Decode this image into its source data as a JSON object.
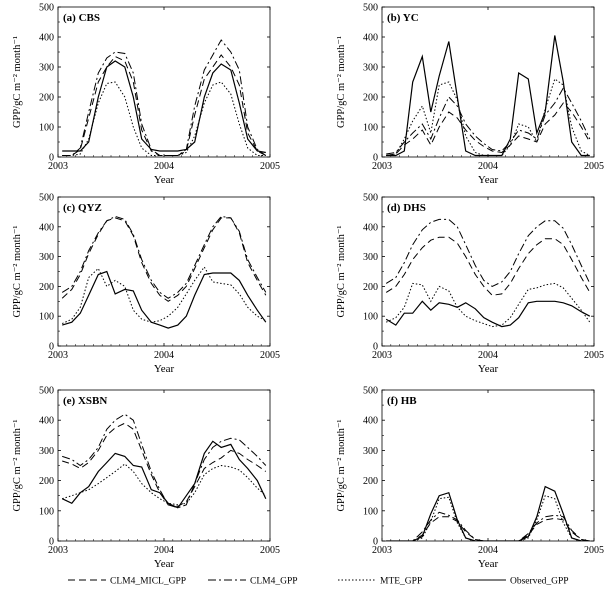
{
  "figure": {
    "legend": [
      {
        "label": "CLM4_MICL_GPP",
        "dash": "dash"
      },
      {
        "label": "CLM4_GPP",
        "dash": "dashdot"
      },
      {
        "label": "MTE_GPP",
        "dash": "dot"
      },
      {
        "label": "Observed_GPP",
        "dash": "solid"
      }
    ],
    "line_color": "#000000"
  },
  "chart_data": [
    {
      "type": "line",
      "panel_title": "(a) CBS",
      "xlabel": "Year",
      "ylabel": "GPP/gC m⁻² month⁻¹",
      "x_tick_labels": [
        "2003",
        "2004",
        "2005"
      ],
      "y_ticks": [
        0,
        100,
        200,
        300,
        400,
        500
      ],
      "xlim": [
        2003,
        2005
      ],
      "ylim": [
        0,
        500
      ],
      "grid": false,
      "x": [
        2003.04,
        2003.13,
        2003.21,
        2003.29,
        2003.38,
        2003.46,
        2003.54,
        2003.63,
        2003.71,
        2003.79,
        2003.88,
        2003.96,
        2004.04,
        2004.13,
        2004.21,
        2004.29,
        2004.38,
        2004.46,
        2004.54,
        2004.63,
        2004.71,
        2004.79,
        2004.88,
        2004.96
      ],
      "series": [
        {
          "name": "CLM4_MICL_GPP",
          "values": [
            5,
            5,
            25,
            130,
            250,
            300,
            335,
            320,
            250,
            90,
            20,
            5,
            5,
            5,
            20,
            140,
            260,
            300,
            340,
            300,
            240,
            80,
            20,
            5
          ]
        },
        {
          "name": "CLM4_GPP",
          "values": [
            5,
            5,
            30,
            150,
            280,
            330,
            350,
            345,
            280,
            110,
            25,
            5,
            5,
            5,
            25,
            170,
            290,
            340,
            390,
            350,
            290,
            100,
            25,
            5
          ]
        },
        {
          "name": "MTE_GPP",
          "values": [
            5,
            5,
            10,
            60,
            180,
            245,
            250,
            200,
            100,
            30,
            5,
            5,
            5,
            5,
            15,
            70,
            180,
            240,
            250,
            210,
            110,
            30,
            5,
            5
          ]
        },
        {
          "name": "Observed_GPP",
          "values": [
            20,
            20,
            20,
            50,
            200,
            300,
            320,
            300,
            200,
            60,
            25,
            20,
            20,
            20,
            25,
            50,
            200,
            280,
            310,
            290,
            180,
            60,
            20,
            15
          ]
        }
      ]
    },
    {
      "type": "line",
      "panel_title": "(b) YC",
      "xlabel": "Year",
      "ylabel": "GPP/gC m⁻² month⁻¹",
      "x_tick_labels": [
        "2003",
        "2004",
        "2005"
      ],
      "y_ticks": [
        0,
        100,
        200,
        300,
        400,
        500
      ],
      "xlim": [
        2003,
        2005
      ],
      "ylim": [
        0,
        500
      ],
      "grid": false,
      "x": [
        2003.04,
        2003.13,
        2003.21,
        2003.29,
        2003.38,
        2003.46,
        2003.54,
        2003.63,
        2003.71,
        2003.79,
        2003.88,
        2003.96,
        2004.04,
        2004.13,
        2004.21,
        2004.29,
        2004.38,
        2004.46,
        2004.54,
        2004.63,
        2004.71,
        2004.79,
        2004.88,
        2004.96
      ],
      "series": [
        {
          "name": "CLM4_MICL_GPP",
          "values": [
            5,
            10,
            40,
            60,
            90,
            40,
            100,
            150,
            130,
            90,
            55,
            35,
            20,
            15,
            40,
            70,
            60,
            50,
            110,
            140,
            180,
            150,
            100,
            50
          ]
        },
        {
          "name": "CLM4_GPP",
          "values": [
            10,
            15,
            50,
            80,
            110,
            60,
            130,
            200,
            170,
            110,
            70,
            45,
            25,
            20,
            50,
            90,
            80,
            60,
            140,
            180,
            230,
            180,
            120,
            60
          ]
        },
        {
          "name": "MTE_GPP",
          "values": [
            5,
            10,
            60,
            120,
            170,
            80,
            240,
            250,
            190,
            70,
            15,
            5,
            5,
            5,
            40,
            110,
            100,
            50,
            160,
            260,
            240,
            100,
            20,
            5
          ]
        },
        {
          "name": "Observed_GPP",
          "values": [
            5,
            5,
            20,
            250,
            335,
            150,
            270,
            385,
            200,
            20,
            5,
            5,
            5,
            5,
            60,
            280,
            260,
            80,
            150,
            405,
            250,
            50,
            5,
            5
          ]
        }
      ]
    },
    {
      "type": "line",
      "panel_title": "(c) QYZ",
      "xlabel": "Year",
      "ylabel": "GPP/gC m⁻² month⁻¹",
      "x_tick_labels": [
        "2003",
        "2004",
        "2005"
      ],
      "y_ticks": [
        0,
        100,
        200,
        300,
        400,
        500
      ],
      "xlim": [
        2003,
        2005
      ],
      "ylim": [
        0,
        500
      ],
      "grid": false,
      "x": [
        2003.04,
        2003.13,
        2003.21,
        2003.29,
        2003.38,
        2003.46,
        2003.54,
        2003.63,
        2003.71,
        2003.79,
        2003.88,
        2003.96,
        2004.04,
        2004.13,
        2004.21,
        2004.29,
        2004.38,
        2004.46,
        2004.54,
        2004.63,
        2004.71,
        2004.79,
        2004.88,
        2004.96
      ],
      "series": [
        {
          "name": "CLM4_MICL_GPP",
          "values": [
            160,
            190,
            240,
            310,
            375,
            420,
            430,
            420,
            370,
            280,
            210,
            170,
            150,
            170,
            200,
            260,
            330,
            390,
            430,
            430,
            380,
            280,
            220,
            170
          ]
        },
        {
          "name": "CLM4_GPP",
          "values": [
            180,
            200,
            250,
            320,
            380,
            420,
            435,
            425,
            375,
            290,
            220,
            180,
            160,
            180,
            210,
            270,
            340,
            400,
            435,
            430,
            385,
            290,
            230,
            180
          ]
        },
        {
          "name": "MTE_GPP",
          "values": [
            75,
            90,
            130,
            230,
            260,
            200,
            220,
            200,
            120,
            90,
            80,
            85,
            100,
            130,
            175,
            220,
            265,
            215,
            210,
            205,
            175,
            130,
            100,
            85
          ]
        },
        {
          "name": "Observed_GPP",
          "values": [
            70,
            80,
            110,
            170,
            240,
            250,
            175,
            190,
            185,
            120,
            80,
            70,
            60,
            70,
            100,
            170,
            240,
            245,
            245,
            245,
            220,
            170,
            120,
            80
          ]
        }
      ]
    },
    {
      "type": "line",
      "panel_title": "(d) DHS",
      "xlabel": "Year",
      "ylabel": "GPP/gC m⁻² month⁻¹",
      "x_tick_labels": [
        "2003",
        "2004",
        "2005"
      ],
      "y_ticks": [
        0,
        100,
        200,
        300,
        400,
        500
      ],
      "xlim": [
        2003,
        2005
      ],
      "ylim": [
        0,
        500
      ],
      "grid": false,
      "x": [
        2003.04,
        2003.13,
        2003.21,
        2003.29,
        2003.38,
        2003.46,
        2003.54,
        2003.63,
        2003.71,
        2003.79,
        2003.88,
        2003.96,
        2004.04,
        2004.13,
        2004.21,
        2004.29,
        2004.38,
        2004.46,
        2004.54,
        2004.63,
        2004.71,
        2004.79,
        2004.88,
        2004.96
      ],
      "series": [
        {
          "name": "CLM4_MICL_GPP",
          "values": [
            180,
            200,
            240,
            290,
            330,
            355,
            365,
            365,
            345,
            300,
            240,
            200,
            170,
            175,
            210,
            260,
            310,
            340,
            360,
            360,
            340,
            290,
            230,
            180
          ]
        },
        {
          "name": "CLM4_GPP",
          "values": [
            210,
            230,
            280,
            340,
            390,
            415,
            425,
            425,
            400,
            340,
            270,
            220,
            200,
            215,
            250,
            310,
            370,
            400,
            420,
            420,
            395,
            340,
            270,
            210
          ]
        },
        {
          "name": "MTE_GPP",
          "values": [
            80,
            95,
            130,
            210,
            205,
            150,
            200,
            185,
            130,
            100,
            85,
            75,
            65,
            70,
            95,
            140,
            190,
            195,
            205,
            210,
            195,
            160,
            120,
            80
          ]
        },
        {
          "name": "Observed_GPP",
          "values": [
            90,
            70,
            110,
            110,
            150,
            120,
            145,
            140,
            130,
            145,
            125,
            95,
            80,
            65,
            70,
            95,
            145,
            150,
            150,
            150,
            145,
            135,
            115,
            100
          ]
        }
      ]
    },
    {
      "type": "line",
      "panel_title": "(e) XSBN",
      "xlabel": "Year",
      "ylabel": "GPP/gC m⁻² month⁻¹",
      "x_tick_labels": [
        "2003",
        "2004",
        "2005"
      ],
      "y_ticks": [
        0,
        100,
        200,
        300,
        400,
        500
      ],
      "xlim": [
        2003,
        2005
      ],
      "ylim": [
        0,
        500
      ],
      "grid": false,
      "x": [
        2003.04,
        2003.13,
        2003.21,
        2003.29,
        2003.38,
        2003.46,
        2003.54,
        2003.63,
        2003.71,
        2003.79,
        2003.88,
        2003.96,
        2004.04,
        2004.13,
        2004.21,
        2004.29,
        2004.38,
        2004.46,
        2004.54,
        2004.63,
        2004.71,
        2004.79,
        2004.88,
        2004.96
      ],
      "series": [
        {
          "name": "CLM4_MICL_GPP",
          "values": [
            265,
            255,
            240,
            260,
            300,
            350,
            375,
            390,
            370,
            300,
            220,
            160,
            120,
            115,
            130,
            180,
            240,
            260,
            275,
            300,
            290,
            270,
            250,
            230
          ]
        },
        {
          "name": "CLM4_GPP",
          "values": [
            280,
            270,
            250,
            270,
            310,
            370,
            400,
            420,
            400,
            320,
            230,
            170,
            120,
            110,
            120,
            190,
            270,
            310,
            330,
            340,
            335,
            310,
            280,
            250
          ]
        },
        {
          "name": "MTE_GPP",
          "values": [
            140,
            150,
            160,
            170,
            190,
            210,
            230,
            255,
            230,
            190,
            160,
            140,
            125,
            120,
            125,
            160,
            220,
            240,
            250,
            245,
            235,
            210,
            175,
            150
          ]
        },
        {
          "name": "Observed_GPP",
          "values": [
            140,
            125,
            160,
            180,
            230,
            260,
            290,
            280,
            250,
            245,
            170,
            160,
            125,
            110,
            150,
            190,
            290,
            330,
            310,
            320,
            270,
            240,
            200,
            140
          ]
        }
      ]
    },
    {
      "type": "line",
      "panel_title": "(f) HB",
      "xlabel": "Year",
      "ylabel": "GPP/gC m⁻² month⁻¹",
      "x_tick_labels": [
        "2003",
        "2004",
        "2005"
      ],
      "y_ticks": [
        0,
        100,
        200,
        300,
        400,
        500
      ],
      "xlim": [
        2003,
        2005
      ],
      "ylim": [
        0,
        500
      ],
      "grid": false,
      "x": [
        2003.04,
        2003.13,
        2003.21,
        2003.29,
        2003.38,
        2003.46,
        2003.54,
        2003.63,
        2003.71,
        2003.79,
        2003.88,
        2003.96,
        2004.04,
        2004.13,
        2004.21,
        2004.29,
        2004.38,
        2004.46,
        2004.54,
        2004.63,
        2004.71,
        2004.79,
        2004.88,
        2004.96
      ],
      "series": [
        {
          "name": "CLM4_MICL_GPP",
          "values": [
            0,
            0,
            0,
            0,
            20,
            60,
            80,
            80,
            65,
            30,
            5,
            0,
            0,
            0,
            0,
            0,
            20,
            55,
            70,
            75,
            70,
            30,
            5,
            0
          ]
        },
        {
          "name": "CLM4_GPP",
          "values": [
            0,
            0,
            0,
            0,
            30,
            70,
            95,
            85,
            70,
            35,
            5,
            0,
            0,
            0,
            0,
            0,
            25,
            60,
            80,
            85,
            80,
            35,
            5,
            0
          ]
        },
        {
          "name": "MTE_GPP",
          "values": [
            0,
            0,
            0,
            0,
            10,
            65,
            140,
            145,
            60,
            10,
            0,
            0,
            0,
            0,
            0,
            0,
            10,
            70,
            150,
            140,
            60,
            10,
            0,
            0
          ]
        },
        {
          "name": "Observed_GPP",
          "values": [
            0,
            0,
            0,
            0,
            15,
            90,
            150,
            160,
            70,
            10,
            0,
            0,
            0,
            0,
            0,
            0,
            15,
            80,
            180,
            165,
            90,
            10,
            0,
            0
          ]
        }
      ]
    }
  ]
}
